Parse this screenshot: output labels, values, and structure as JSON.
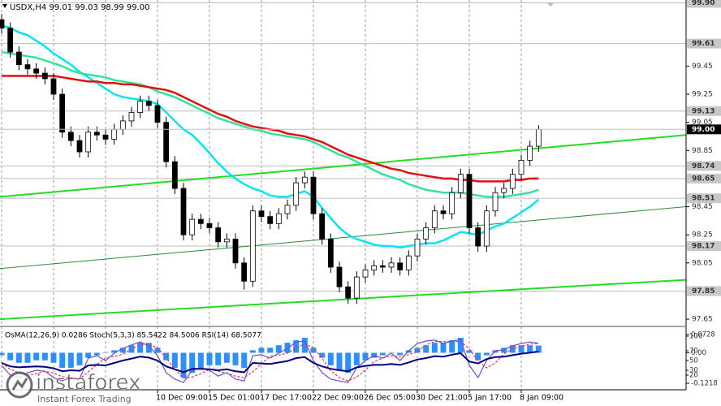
{
  "chart_data": [
    {
      "type": "candlestick",
      "title": "USDX,H4  99.01 99.03 98.99 99.00",
      "categories": [
        null,
        null,
        null,
        null,
        null,
        null,
        null,
        null,
        null,
        null,
        null,
        null,
        null,
        null,
        null,
        null,
        null,
        null,
        "10 Dec 09:00",
        null,
        null,
        null,
        null,
        null,
        "15 Dec 01:00",
        null,
        null,
        null,
        null,
        null,
        "17 Dec 17:00",
        null,
        null,
        null,
        null,
        null,
        "22 Dec 09:00",
        null,
        null,
        null,
        null,
        null,
        "26 Dec 05:00",
        null,
        null,
        null,
        null,
        null,
        "30 Dec 21:00",
        null,
        null,
        null,
        null,
        null,
        "5 Jan 17:00",
        null,
        null,
        null,
        null,
        null,
        "8 Jan 09:00",
        null,
        null
      ],
      "open": [
        99.78,
        99.72,
        99.55,
        99.46,
        99.43,
        99.4,
        99.36,
        99.25,
        98.98,
        98.92,
        98.84,
        98.98,
        98.96,
        98.93,
        99.0,
        99.06,
        99.12,
        99.2,
        99.17,
        99.05,
        98.77,
        98.58,
        98.25,
        98.36,
        98.33,
        98.3,
        98.2,
        98.22,
        98.05,
        97.92,
        98.42,
        98.38,
        98.33,
        98.4,
        98.46,
        98.62,
        98.66,
        98.4,
        98.22,
        98.02,
        97.88,
        97.8,
        97.95,
        98.0,
        98.03,
        98.02,
        98.05,
        98.0,
        98.1,
        98.22,
        98.3,
        98.42,
        98.4,
        98.55,
        98.68,
        98.3,
        98.17,
        98.42,
        98.55,
        98.58,
        98.68,
        98.78,
        98.88
      ],
      "high": [
        99.82,
        99.76,
        99.59,
        99.5,
        99.47,
        99.44,
        99.4,
        99.29,
        99.02,
        98.96,
        99.02,
        99.02,
        99.0,
        99.04,
        99.1,
        99.16,
        99.24,
        99.24,
        99.21,
        99.09,
        98.81,
        98.62,
        98.4,
        98.4,
        98.37,
        98.34,
        98.26,
        98.26,
        98.09,
        98.46,
        98.46,
        98.42,
        98.44,
        98.5,
        98.66,
        98.7,
        98.7,
        98.44,
        98.26,
        98.06,
        97.92,
        97.99,
        98.04,
        98.07,
        98.07,
        98.09,
        98.09,
        98.14,
        98.26,
        98.34,
        98.46,
        98.46,
        98.59,
        98.72,
        98.72,
        98.34,
        98.46,
        98.59,
        98.62,
        98.72,
        98.82,
        98.92,
        99.03
      ],
      "low": [
        99.68,
        99.51,
        99.42,
        99.39,
        99.36,
        99.32,
        99.21,
        98.94,
        98.88,
        98.8,
        98.8,
        98.92,
        98.89,
        98.89,
        98.96,
        99.02,
        99.08,
        99.13,
        99.01,
        98.73,
        98.54,
        98.21,
        98.21,
        98.29,
        98.26,
        98.16,
        98.16,
        98.01,
        97.86,
        97.88,
        98.34,
        98.29,
        98.29,
        98.36,
        98.42,
        98.58,
        98.36,
        98.18,
        97.98,
        97.84,
        97.76,
        97.76,
        97.91,
        97.96,
        97.98,
        97.98,
        97.96,
        97.96,
        98.06,
        98.18,
        98.26,
        98.36,
        98.36,
        98.51,
        98.26,
        98.13,
        98.13,
        98.38,
        98.51,
        98.54,
        98.64,
        98.74,
        98.84
      ],
      "close": [
        99.72,
        99.55,
        99.46,
        99.43,
        99.4,
        99.36,
        99.25,
        98.98,
        98.92,
        98.84,
        98.98,
        98.96,
        98.93,
        99.0,
        99.06,
        99.12,
        99.2,
        99.17,
        99.05,
        98.77,
        98.58,
        98.25,
        98.36,
        98.33,
        98.3,
        98.2,
        98.22,
        98.05,
        97.92,
        98.42,
        98.38,
        98.33,
        98.4,
        98.46,
        98.62,
        98.66,
        98.4,
        98.22,
        98.02,
        97.88,
        97.8,
        97.95,
        98.0,
        98.03,
        98.02,
        98.05,
        98.0,
        98.1,
        98.22,
        98.3,
        98.42,
        98.4,
        98.55,
        98.68,
        98.3,
        98.17,
        98.42,
        98.55,
        98.58,
        98.68,
        98.78,
        98.88,
        99.0
      ],
      "up_color": "#ffffff",
      "down_color": "#000000",
      "series": [
        {
          "color": "#00e5ee",
          "values": [
            99.74,
            99.72,
            99.69,
            99.67,
            99.63,
            99.59,
            99.54,
            99.5,
            99.46,
            99.41,
            99.37,
            99.33,
            99.29,
            99.25,
            99.23,
            99.22,
            99.21,
            99.2,
            99.18,
            99.12,
            99.06,
            99.0,
            98.96,
            98.9,
            98.83,
            98.76,
            98.7,
            98.65,
            98.61,
            98.58,
            98.56,
            98.53,
            98.52,
            98.52,
            98.54,
            98.56,
            98.52,
            98.44,
            98.37,
            98.3,
            98.25,
            98.22,
            98.2,
            98.18,
            98.17,
            98.17,
            98.16,
            98.17,
            98.18,
            98.19,
            98.19,
            98.21,
            98.24,
            98.27,
            98.26,
            98.25,
            98.28,
            98.31,
            98.33,
            98.37,
            98.41,
            98.45,
            98.5
          ]
        },
        {
          "color": "#33e39a",
          "values": [
            99.55,
            99.54,
            99.53,
            99.52,
            99.51,
            99.49,
            99.47,
            99.45,
            99.42,
            99.4,
            99.39,
            99.38,
            99.37,
            99.35,
            99.34,
            99.33,
            99.32,
            99.3,
            99.27,
            99.25,
            99.23,
            99.2,
            99.17,
            99.14,
            99.11,
            99.08,
            99.06,
            99.04,
            99.02,
            99.0,
            98.99,
            98.97,
            98.96,
            98.95,
            98.94,
            98.93,
            98.91,
            98.88,
            98.85,
            98.82,
            98.8,
            98.77,
            98.74,
            98.71,
            98.68,
            98.66,
            98.64,
            98.61,
            98.59,
            98.57,
            98.56,
            98.55,
            98.55,
            98.55,
            98.54,
            98.53,
            98.52,
            98.52,
            98.52,
            98.53,
            98.54,
            98.55,
            98.57
          ]
        },
        {
          "color": "#e01010",
          "values": [
            99.38,
            99.38,
            99.38,
            99.38,
            99.38,
            99.38,
            99.38,
            99.37,
            99.36,
            99.35,
            99.34,
            99.34,
            99.33,
            99.33,
            99.32,
            99.32,
            99.31,
            99.3,
            99.29,
            99.28,
            99.26,
            99.23,
            99.2,
            99.17,
            99.14,
            99.11,
            99.09,
            99.06,
            99.04,
            99.02,
            99.01,
            99.0,
            98.99,
            98.97,
            98.96,
            98.95,
            98.93,
            98.91,
            98.88,
            98.85,
            98.82,
            98.8,
            98.78,
            98.76,
            98.74,
            98.72,
            98.71,
            98.69,
            98.68,
            98.67,
            98.66,
            98.65,
            98.65,
            98.64,
            98.64,
            98.63,
            98.63,
            98.63,
            98.63,
            98.64,
            98.64,
            98.65,
            98.65
          ]
        }
      ],
      "trendlines": [
        {
          "color": "#22dd22",
          "values": [
            98.52,
            98.96
          ]
        },
        {
          "color": "#2a8a3a",
          "values": [
            98.01,
            98.45
          ]
        },
        {
          "color": "#22dd22",
          "values": [
            97.65,
            97.93
          ]
        }
      ],
      "ylim": [
        97.61,
        99.92
      ],
      "yticks": [
        99.45,
        99.25,
        99.05,
        98.85,
        98.45,
        98.25,
        98.05,
        97.65
      ],
      "levels": [
        {
          "value": 99.9,
          "label": "99.90"
        },
        99.61,
        99.13,
        98.74,
        98.65,
        98.51,
        98.17,
        97.85
      ],
      "current_price": {
        "value": 99,
        "label": "99.00"
      },
      "xgrid": true
    },
    {
      "type": "osma",
      "title": "OsMA(12,26,9) 0.0286 Stoch(5,3,3) 85.5422 84.5006 RSI(14) 68.5077",
      "color": "#2f8fff",
      "values": [
        -0.01,
        -0.03,
        -0.04,
        -0.04,
        -0.03,
        -0.03,
        -0.04,
        -0.06,
        -0.06,
        -0.05,
        -0.02,
        -0.01,
        0,
        0.01,
        0.02,
        0.03,
        0.04,
        0.04,
        0.02,
        -0.03,
        -0.06,
        -0.1,
        -0.08,
        -0.06,
        -0.05,
        -0.05,
        -0.04,
        -0.05,
        -0.06,
        0.01,
        0.02,
        0.02,
        0.03,
        0.04,
        0.05,
        0.06,
        0.02,
        -0.02,
        -0.05,
        -0.07,
        -0.08,
        -0.05,
        -0.03,
        -0.02,
        -0.01,
        0,
        -0.01,
        0.01,
        0.02,
        0.03,
        0.04,
        0.04,
        0.05,
        0.06,
        0.01,
        -0.03,
        -0.01,
        0.01,
        0.02,
        0.03,
        0.03,
        0.03,
        0.0286
      ],
      "ylim": [
        -0.1218,
        0.0728
      ],
      "yticks": [
        0.0728,
        {
          "value": 0,
          "label": "0.00"
        },
        -0.1218
      ],
      "y2lim": [
        0,
        100
      ],
      "y2ticks": [
        100,
        70,
        50,
        30,
        20
      ],
      "series": [
        {
          "axis": "y2",
          "color": "#6a4fc8",
          "values": [
            40,
            20,
            15,
            25,
            30,
            28,
            15,
            8,
            15,
            12,
            55,
            60,
            50,
            65,
            75,
            82,
            88,
            80,
            60,
            25,
            12,
            5,
            30,
            35,
            30,
            18,
            25,
            12,
            8,
            60,
            62,
            55,
            65,
            75,
            88,
            90,
            50,
            25,
            12,
            8,
            5,
            35,
            50,
            60,
            55,
            65,
            50,
            70,
            85,
            90,
            92,
            85,
            90,
            93,
            40,
            15,
            50,
            70,
            72,
            80,
            85,
            88,
            85.5422
          ]
        },
        {
          "axis": "y2",
          "color": "#e8305a",
          "dash": true,
          "values": [
            45,
            32,
            25,
            20,
            23,
            28,
            24,
            17,
            13,
            12,
            27,
            42,
            55,
            58,
            63,
            74,
            82,
            83,
            76,
            55,
            32,
            14,
            16,
            23,
            32,
            28,
            24,
            18,
            15,
            27,
            43,
            59,
            61,
            65,
            76,
            84,
            76,
            55,
            29,
            15,
            8,
            16,
            30,
            48,
            55,
            60,
            57,
            62,
            68,
            82,
            89,
            89,
            89,
            89,
            74,
            49,
            35,
            45,
            64,
            74,
            79,
            84,
            84.5006
          ]
        },
        {
          "axis": "y2",
          "color": "#000080",
          "values": [
            45,
            38,
            36,
            37,
            38,
            37,
            34,
            28,
            30,
            29,
            40,
            41,
            40,
            45,
            50,
            54,
            58,
            56,
            50,
            38,
            32,
            26,
            33,
            33,
            32,
            30,
            32,
            28,
            26,
            45,
            44,
            43,
            46,
            49,
            55,
            57,
            45,
            38,
            33,
            30,
            28,
            36,
            39,
            41,
            41,
            43,
            41,
            46,
            52,
            55,
            59,
            58,
            62,
            65,
            48,
            44,
            53,
            57,
            58,
            61,
            64,
            66,
            68.5077
          ]
        }
      ]
    }
  ],
  "brand": {
    "name": "instaforex",
    "tagline": "Instant Forex Trading"
  }
}
